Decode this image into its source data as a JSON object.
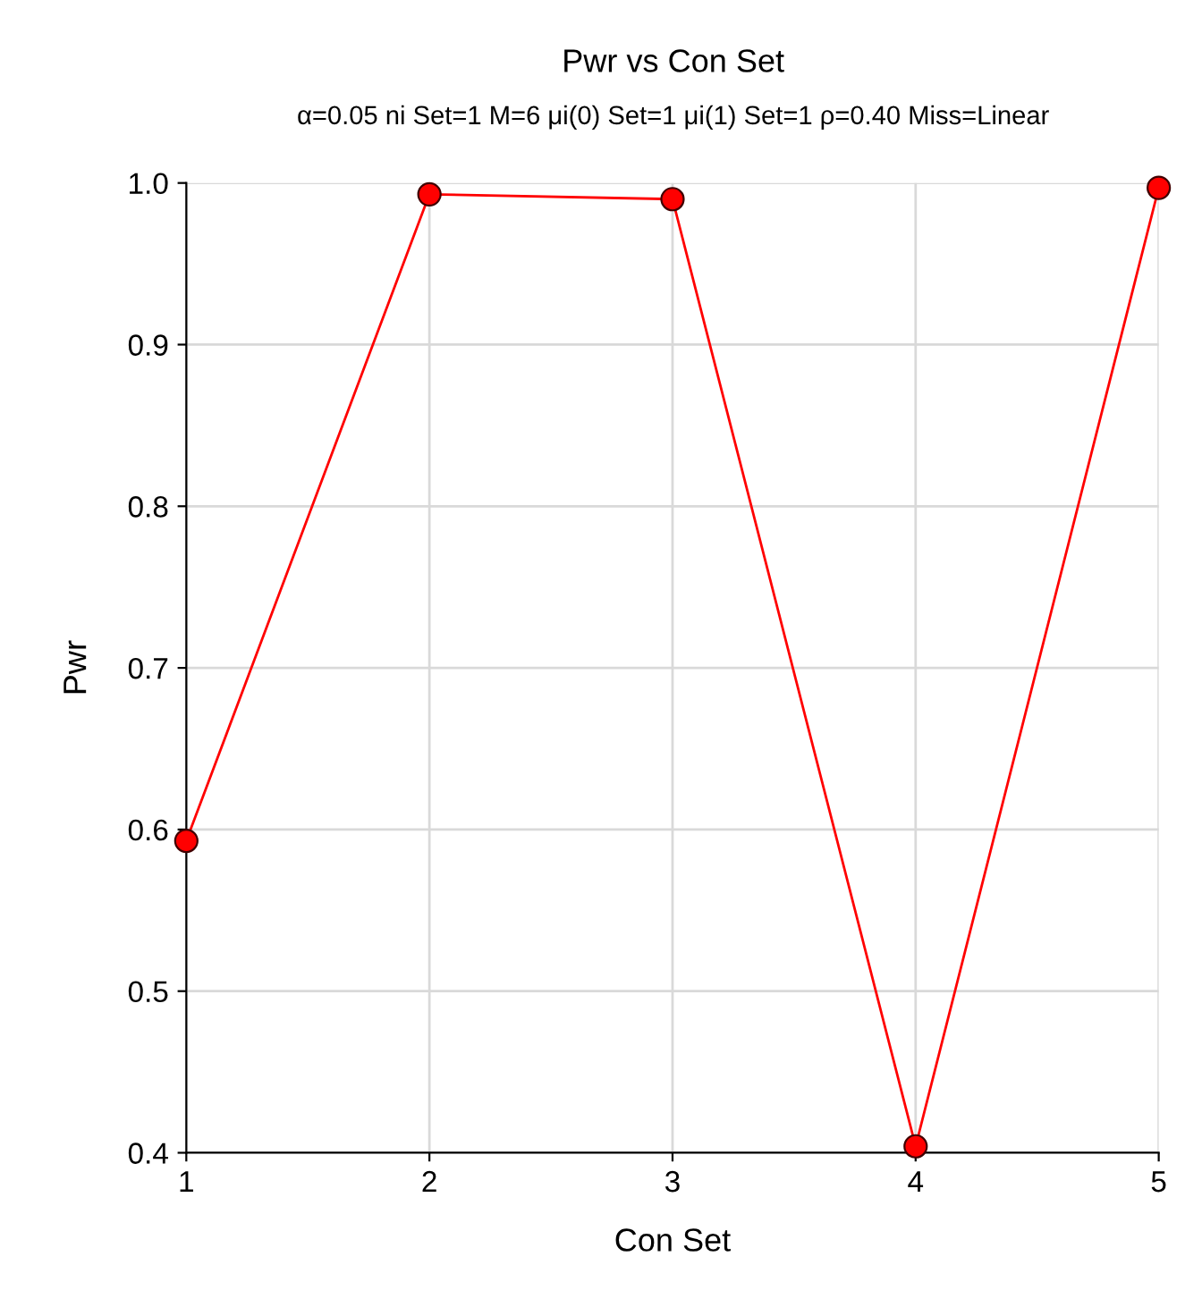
{
  "chart_data": {
    "type": "line",
    "title": "Pwr vs Con Set",
    "subtitle": "α=0.05 ni Set=1 M=6 μi(0) Set=1 μi(1) Set=1 ρ=0.40 Miss=Linear",
    "xlabel": "Con Set",
    "ylabel": "Pwr",
    "x": [
      1,
      2,
      3,
      4,
      5
    ],
    "series": [
      {
        "color": "#ff0000",
        "values": [
          0.593,
          0.993,
          0.99,
          0.404,
          0.997
        ]
      }
    ],
    "xlim": [
      1,
      5
    ],
    "xticks": [
      1,
      2,
      3,
      4,
      5
    ],
    "ylim": [
      0.4,
      1.0
    ],
    "yticks": [
      {
        "value": 0.4,
        "label": "0.4"
      },
      {
        "value": 0.5,
        "label": "0.5"
      },
      {
        "value": 0.6,
        "label": "0.6"
      },
      {
        "value": 0.7,
        "label": "0.7"
      },
      {
        "value": 0.8,
        "label": "0.8"
      },
      {
        "value": 0.9,
        "label": "0.9"
      },
      {
        "value": 1.0,
        "label": "1.0"
      }
    ],
    "grid": true,
    "marker": "circle",
    "line_style": "solid",
    "legend": false
  }
}
